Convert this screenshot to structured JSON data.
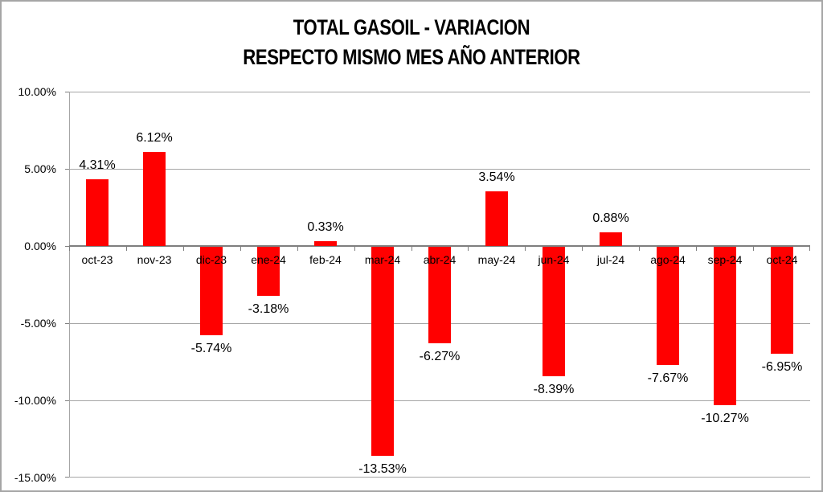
{
  "title": {
    "line1": "TOTAL GASOIL - VARIACION",
    "line2": "RESPECTO MISMO MES AÑO ANTERIOR"
  },
  "chart_data": {
    "type": "bar",
    "title": "TOTAL GASOIL - VARIACION RESPECTO MISMO MES AÑO ANTERIOR",
    "categories": [
      "oct-23",
      "nov-23",
      "dic-23",
      "ene-24",
      "feb-24",
      "mar-24",
      "abr-24",
      "may-24",
      "jun-24",
      "jul-24",
      "ago-24",
      "sep-24",
      "oct-24"
    ],
    "values": [
      4.31,
      6.12,
      -5.74,
      -3.18,
      0.33,
      -13.53,
      -6.27,
      3.54,
      -8.39,
      0.88,
      -7.67,
      -10.27,
      -6.95
    ],
    "data_labels": [
      "4.31%",
      "6.12%",
      "-5.74%",
      "-3.18%",
      "0.33%",
      "-13.53%",
      "-6.27%",
      "3.54%",
      "-8.39%",
      "0.88%",
      "-7.67%",
      "-10.27%",
      "-6.95%"
    ],
    "xlabel": "",
    "ylabel": "",
    "ylim": [
      -15,
      10
    ],
    "ytick_step": 5,
    "ytick_labels": [
      "10.00%",
      "5.00%",
      "0.00%",
      "-5.00%",
      "-10.00%",
      "-15.00%"
    ],
    "grid": true,
    "legend_position": "none",
    "bar_color": "#ff0000",
    "gridline_color": "#a6a6a6",
    "axis_line_color": "#7f7f7f",
    "border_color": "#a6a6a6",
    "text_color": "#000000",
    "background_color": "#ffffff"
  }
}
